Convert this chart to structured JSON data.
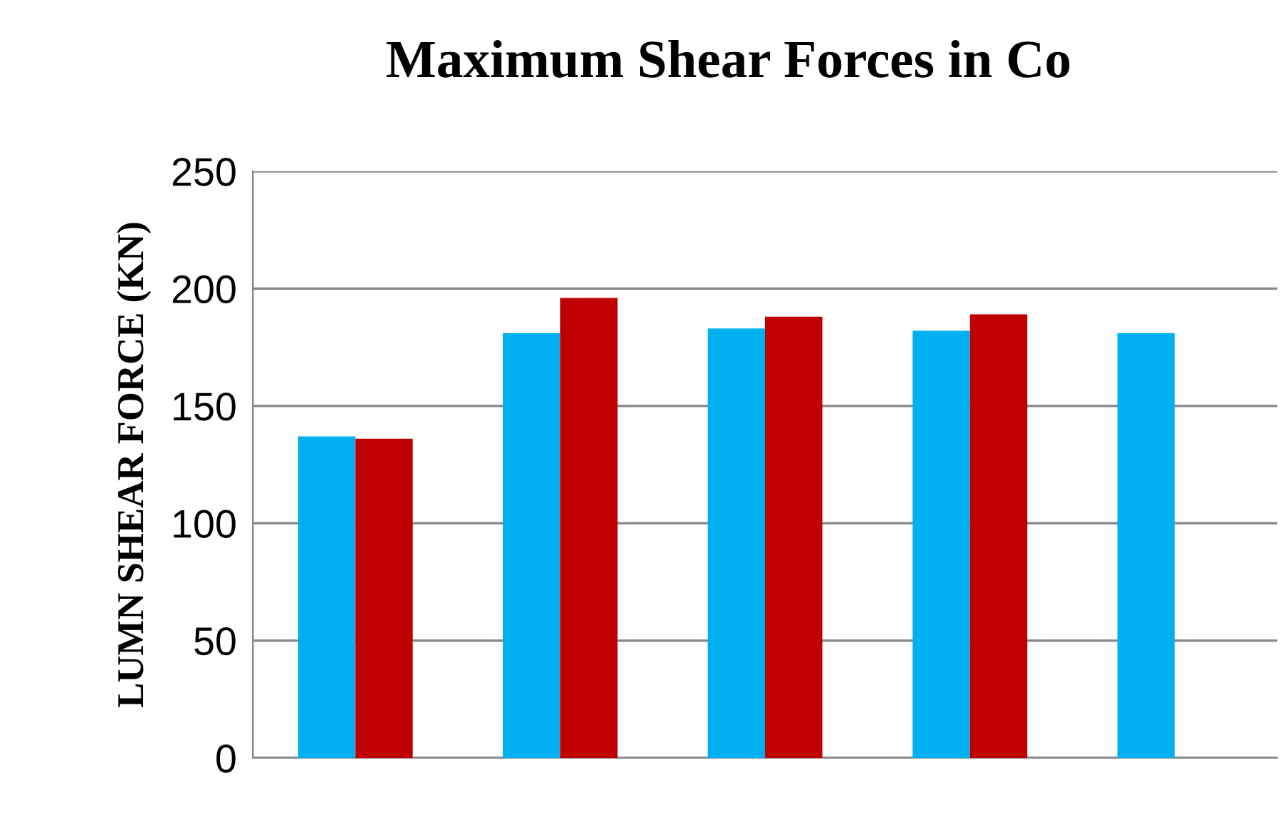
{
  "chart_data": {
    "type": "bar",
    "title": "Maximum Shear Forces in Co",
    "ylabel": "LUMN SHEAR FORCE (KN)",
    "categories": [
      null,
      null,
      null,
      null,
      null
    ],
    "series": [
      {
        "color": "#00b0f0",
        "values": [
          137,
          181,
          183,
          182,
          181
        ]
      },
      {
        "color": "#c00000",
        "values": [
          136,
          196,
          188,
          189,
          null
        ]
      }
    ],
    "ylim": [
      0,
      250
    ],
    "yticks": [
      0,
      50,
      100,
      150,
      200,
      250
    ],
    "grid": "y"
  }
}
